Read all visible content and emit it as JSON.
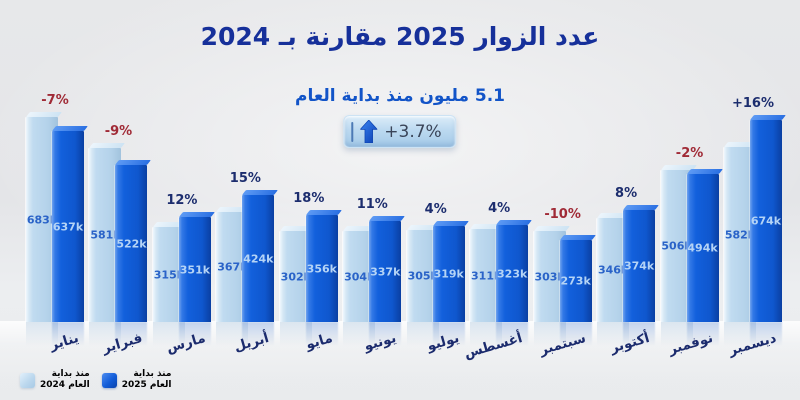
{
  "title": "عدد الزوار 2025 مقارنة بـ 2024",
  "subtitle": "5.1 مليون منذ بداية العام",
  "badge": {
    "value": "+3.7%",
    "icon": "arrow-up-icon"
  },
  "legend": {
    "items": [
      {
        "line1": "منذ بداية",
        "line2": "العام 2024",
        "swatch_color": "#b7d4ec"
      },
      {
        "line1": "منذ بداية",
        "line2": "العام 2025",
        "swatch_color": "#1161de"
      }
    ]
  },
  "colors": {
    "title": "#16309a",
    "subtitle": "#1254c8",
    "positive_change": "#1c2d6e",
    "negative_change": "#a02a36",
    "bar_2024": "#b7d4ec",
    "bar_2025": "#1161de",
    "value_on_2024": "#2a63c8",
    "value_on_2025": "#b5d4f6",
    "month_label": "#1b2b6d"
  },
  "chart_data": {
    "type": "bar",
    "title": "عدد الزوار 2025 مقارنة بـ 2024",
    "subtitle_total": "5.1 مليون منذ بداية العام",
    "total_change": "+3.7%",
    "unit": "k (thousands of visitors)",
    "grid": false,
    "legend_position": "bottom-left",
    "ylim": [
      0,
      700
    ],
    "categories": [
      "يناير",
      "فبراير",
      "مارس",
      "أبريل",
      "مايو",
      "يونيو",
      "يوليو",
      "أغسطس",
      "سبتمبر",
      "أكتوبر",
      "نوفمبر",
      "ديسمبر"
    ],
    "series": [
      {
        "name": "منذ بداية العام 2024",
        "values": [
          683,
          581,
          315,
          367,
          302,
          304,
          305,
          311,
          303,
          346,
          506,
          582
        ],
        "labels": [
          "683k",
          "581k",
          "315k",
          "367k",
          "302k",
          "304k",
          "305k",
          "311k",
          "303k",
          "346k",
          "506k",
          "582k"
        ]
      },
      {
        "name": "منذ بداية العام 2025",
        "values": [
          637,
          522,
          351,
          424,
          356,
          337,
          319,
          323,
          273,
          374,
          494,
          674
        ],
        "labels": [
          "637k",
          "522k",
          "351k",
          "424k",
          "356k",
          "337k",
          "319k",
          "323k",
          "273k",
          "374k",
          "494k",
          "674k"
        ]
      }
    ],
    "change_labels": [
      "-7%",
      "-9%",
      "12%",
      "15%",
      "18%",
      "11%",
      "4%",
      "4%",
      "-10%",
      "8%",
      "-2%",
      "+16%"
    ]
  }
}
